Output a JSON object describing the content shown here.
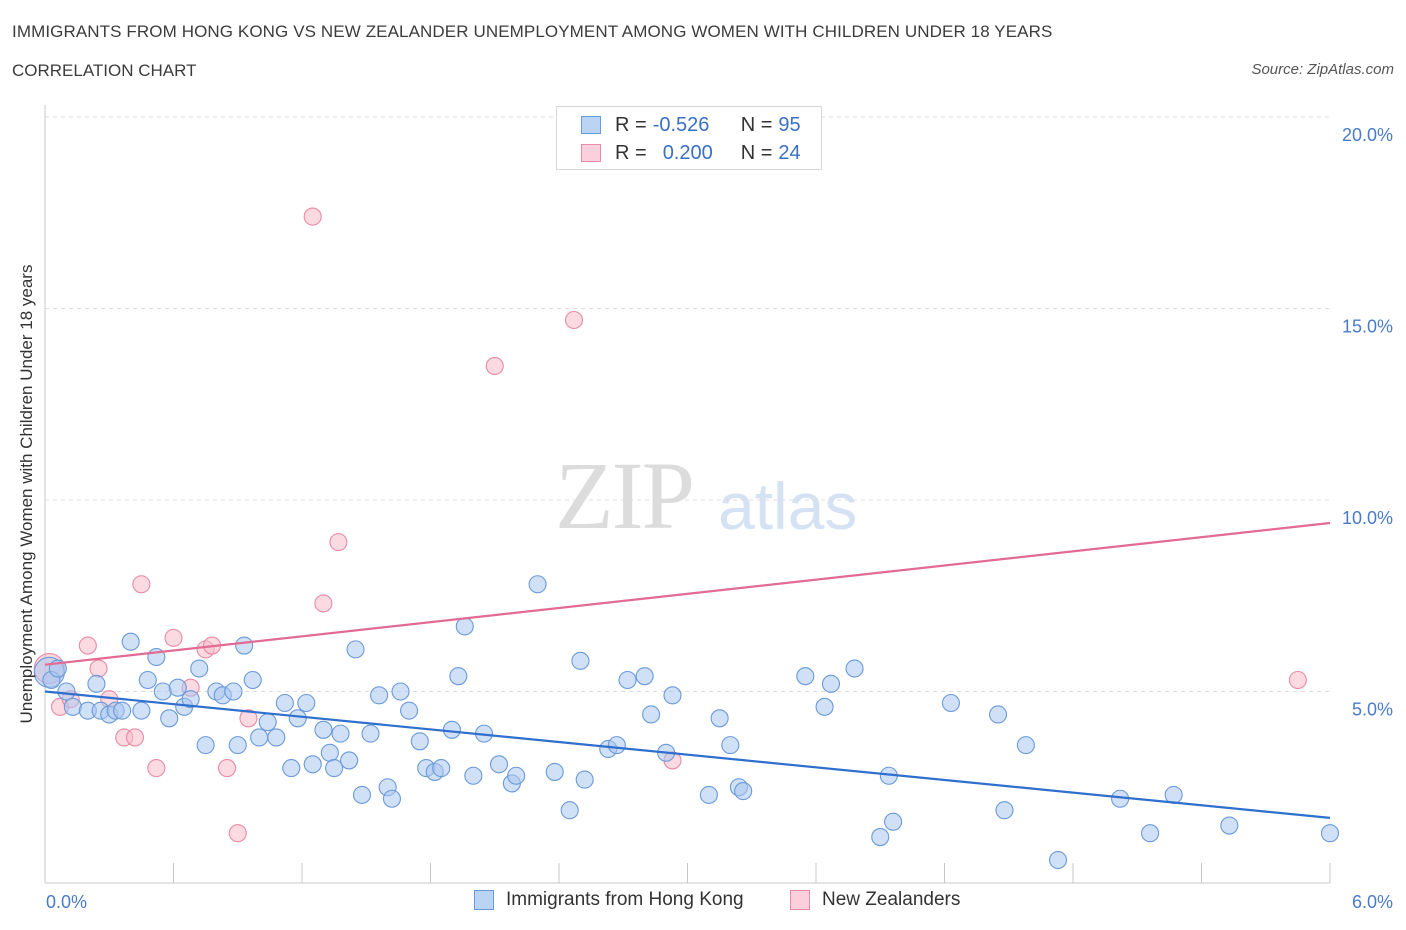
{
  "title": "IMMIGRANTS FROM HONG KONG VS NEW ZEALANDER UNEMPLOYMENT AMONG WOMEN WITH CHILDREN UNDER 18 YEARS",
  "subtitle": "CORRELATION CHART",
  "source": "Source: ZipAtlas.com",
  "watermark": {
    "zip": "ZIP",
    "atlas": "atlas"
  },
  "legend": {
    "series1": {
      "r_label": "R =",
      "r_value": "-0.526",
      "n_label": "N =",
      "n_value": "95"
    },
    "series2": {
      "r_label": "R =",
      "r_value": "0.200",
      "n_label": "N =",
      "n_value": "24"
    }
  },
  "bottom_legend": {
    "series1": "Immigrants from Hong Kong",
    "series2": "New Zealanders"
  },
  "colors": {
    "blue_fill": "#a9c6ef",
    "blue_stroke": "#6a9ad8",
    "blue_line": "#2f6fce",
    "pink_fill": "#f7bccb",
    "pink_stroke": "#e98aa6",
    "pink_line": "#e26a93",
    "tick_text": "#4a7bc8",
    "grid": "#dcdcdc"
  },
  "chart_data": {
    "type": "scatter",
    "title": "IMMIGRANTS FROM HONG KONG VS NEW ZEALANDER UNEMPLOYMENT AMONG WOMEN WITH CHILDREN UNDER 18 YEARS",
    "xlabel": "",
    "ylabel": "Unemployment Among Women with Children Under 18 years",
    "xlim": [
      0,
      6
    ],
    "ylim": [
      0,
      20
    ],
    "x_tick_labels": [
      "0.0%",
      "6.0%"
    ],
    "y_ticks": [
      5,
      10,
      15,
      20
    ],
    "y_tick_labels": [
      "5.0%",
      "10.0%",
      "15.0%",
      "20.0%"
    ],
    "grid": "horizontal dashed",
    "legend_position": "top-center",
    "series": [
      {
        "name": "Immigrants from Hong Kong",
        "R": -0.526,
        "N": 95,
        "trend": {
          "x": [
            0,
            6
          ],
          "y": [
            5.0,
            1.7
          ]
        },
        "points": [
          [
            0.02,
            5.5
          ],
          [
            0.03,
            5.3
          ],
          [
            0.06,
            5.6
          ],
          [
            0.1,
            5.0
          ],
          [
            0.13,
            4.6
          ],
          [
            0.2,
            4.5
          ],
          [
            0.24,
            5.2
          ],
          [
            0.26,
            4.5
          ],
          [
            0.3,
            4.4
          ],
          [
            0.33,
            4.5
          ],
          [
            0.36,
            4.5
          ],
          [
            0.4,
            6.3
          ],
          [
            0.45,
            4.5
          ],
          [
            0.48,
            5.3
          ],
          [
            0.52,
            5.9
          ],
          [
            0.55,
            5.0
          ],
          [
            0.58,
            4.3
          ],
          [
            0.62,
            5.1
          ],
          [
            0.65,
            4.6
          ],
          [
            0.68,
            4.8
          ],
          [
            0.72,
            5.6
          ],
          [
            0.75,
            3.6
          ],
          [
            0.8,
            5.0
          ],
          [
            0.83,
            4.9
          ],
          [
            0.88,
            5.0
          ],
          [
            0.9,
            3.6
          ],
          [
            0.93,
            6.2
          ],
          [
            0.97,
            5.3
          ],
          [
            1.0,
            3.8
          ],
          [
            1.04,
            4.2
          ],
          [
            1.08,
            3.8
          ],
          [
            1.12,
            4.7
          ],
          [
            1.15,
            3.0
          ],
          [
            1.18,
            4.3
          ],
          [
            1.22,
            4.7
          ],
          [
            1.25,
            3.1
          ],
          [
            1.3,
            4.0
          ],
          [
            1.33,
            3.4
          ],
          [
            1.35,
            3.0
          ],
          [
            1.38,
            3.9
          ],
          [
            1.42,
            3.2
          ],
          [
            1.45,
            6.1
          ],
          [
            1.48,
            2.3
          ],
          [
            1.52,
            3.9
          ],
          [
            1.56,
            4.9
          ],
          [
            1.6,
            2.5
          ],
          [
            1.62,
            2.2
          ],
          [
            1.66,
            5.0
          ],
          [
            1.7,
            4.5
          ],
          [
            1.75,
            3.7
          ],
          [
            1.78,
            3.0
          ],
          [
            1.82,
            2.9
          ],
          [
            1.85,
            3.0
          ],
          [
            1.9,
            4.0
          ],
          [
            1.93,
            5.4
          ],
          [
            1.96,
            6.7
          ],
          [
            2.0,
            2.8
          ],
          [
            2.05,
            3.9
          ],
          [
            2.12,
            3.1
          ],
          [
            2.18,
            2.6
          ],
          [
            2.2,
            2.8
          ],
          [
            2.3,
            7.8
          ],
          [
            2.38,
            2.9
          ],
          [
            2.45,
            1.9
          ],
          [
            2.5,
            5.8
          ],
          [
            2.52,
            2.7
          ],
          [
            2.63,
            3.5
          ],
          [
            2.67,
            3.6
          ],
          [
            2.72,
            5.3
          ],
          [
            2.8,
            5.4
          ],
          [
            2.83,
            4.4
          ],
          [
            2.9,
            3.4
          ],
          [
            2.93,
            4.9
          ],
          [
            3.1,
            2.3
          ],
          [
            3.15,
            4.3
          ],
          [
            3.2,
            3.6
          ],
          [
            3.24,
            2.5
          ],
          [
            3.26,
            2.4
          ],
          [
            3.55,
            5.4
          ],
          [
            3.64,
            4.6
          ],
          [
            3.67,
            5.2
          ],
          [
            3.78,
            5.6
          ],
          [
            3.9,
            1.2
          ],
          [
            3.94,
            2.8
          ],
          [
            3.96,
            1.6
          ],
          [
            4.23,
            4.7
          ],
          [
            4.45,
            4.4
          ],
          [
            4.48,
            1.9
          ],
          [
            4.58,
            3.6
          ],
          [
            4.73,
            0.6
          ],
          [
            5.02,
            2.2
          ],
          [
            5.16,
            1.3
          ],
          [
            5.27,
            2.3
          ],
          [
            5.53,
            1.5
          ],
          [
            6.0,
            1.3
          ]
        ]
      },
      {
        "name": "New Zealanders",
        "R": 0.2,
        "N": 24,
        "trend": {
          "x": [
            0,
            6
          ],
          "y": [
            5.7,
            9.4
          ]
        },
        "points": [
          [
            0.02,
            5.6
          ],
          [
            0.07,
            4.6
          ],
          [
            0.12,
            4.8
          ],
          [
            0.2,
            6.2
          ],
          [
            0.25,
            5.6
          ],
          [
            0.3,
            4.8
          ],
          [
            0.37,
            3.8
          ],
          [
            0.42,
            3.8
          ],
          [
            0.45,
            7.8
          ],
          [
            0.52,
            3.0
          ],
          [
            0.6,
            6.4
          ],
          [
            0.68,
            5.1
          ],
          [
            0.75,
            6.1
          ],
          [
            0.78,
            6.2
          ],
          [
            0.85,
            3.0
          ],
          [
            0.9,
            1.3
          ],
          [
            0.95,
            4.3
          ],
          [
            1.25,
            17.4
          ],
          [
            1.3,
            7.3
          ],
          [
            1.37,
            8.9
          ],
          [
            2.1,
            13.5
          ],
          [
            2.47,
            14.7
          ],
          [
            2.93,
            3.2
          ],
          [
            5.85,
            5.3
          ]
        ]
      }
    ]
  }
}
